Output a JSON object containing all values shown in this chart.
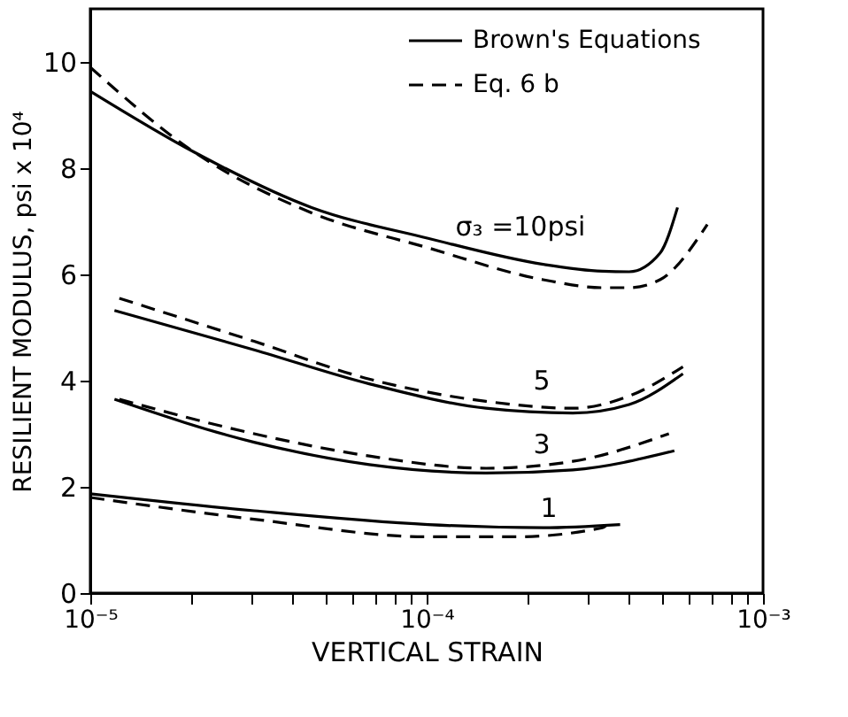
{
  "chart_data": {
    "type": "line",
    "xlabel": "VERTICAL STRAIN",
    "ylabel": "RESILIENT MODULUS, psi x 10⁴",
    "log": "x",
    "xlim": [
      1e-05,
      0.001
    ],
    "ylim": [
      0,
      11
    ],
    "xticks": [
      {
        "value": 1e-05,
        "label": "10⁻⁵"
      },
      {
        "value": 2e-05,
        "label": null
      },
      {
        "value": 3e-05,
        "label": null
      },
      {
        "value": 4e-05,
        "label": null
      },
      {
        "value": 5e-05,
        "label": null
      },
      {
        "value": 6e-05,
        "label": null
      },
      {
        "value": 7e-05,
        "label": null
      },
      {
        "value": 8e-05,
        "label": null
      },
      {
        "value": 9e-05,
        "label": null
      },
      {
        "value": 0.0001,
        "label": "10⁻⁴"
      },
      {
        "value": 0.0002,
        "label": null
      },
      {
        "value": 0.0003,
        "label": null
      },
      {
        "value": 0.0004,
        "label": null
      },
      {
        "value": 0.0005,
        "label": null
      },
      {
        "value": 0.0006,
        "label": null
      },
      {
        "value": 0.0007,
        "label": null
      },
      {
        "value": 0.0008,
        "label": null
      },
      {
        "value": 0.0009,
        "label": null
      },
      {
        "value": 0.001,
        "label": "10⁻³"
      }
    ],
    "yticks": [
      0,
      2,
      4,
      6,
      8,
      10
    ],
    "grid": false,
    "legend": "top right",
    "series": [
      {
        "name": "Brown's Equations",
        "color": "#000000",
        "line_style": "solid",
        "x": [
          1e-05,
          2.04e-05,
          4.55e-05,
          0.000101,
          0.000222,
          0.000333,
          0.0004,
          0.000494,
          0.000557
        ],
        "values": [
          9.45,
          8.3,
          7.26,
          6.68,
          6.19,
          6.06,
          6.05,
          6.4,
          7.26
        ]
      },
      {
        "name": "Eq. 6 b",
        "color": "#000000",
        "line_style": "dashed",
        "x": [
          1e-05,
          2.04e-05,
          4.55e-05,
          0.000101,
          0.000222,
          0.000333,
          0.0004,
          0.000494,
          0.000683
        ],
        "values": [
          9.9,
          8.3,
          7.16,
          6.5,
          5.9,
          5.75,
          5.75,
          5.9,
          6.94
        ]
      },
      {
        "color": "#000000",
        "line_style": "solid",
        "x": [
          1.18e-05,
          3.07e-05,
          6.75e-05,
          0.00015,
          0.000272,
          0.0004,
          0.000578
        ],
        "values": [
          5.32,
          4.58,
          3.94,
          3.48,
          3.39,
          3.55,
          4.13
        ]
      },
      {
        "color": "#000000",
        "line_style": "dashed",
        "x": [
          1.22e-05,
          3.07e-05,
          6.75e-05,
          0.00015,
          0.000272,
          0.0004,
          0.000578
        ],
        "values": [
          5.55,
          4.74,
          4.03,
          3.61,
          3.48,
          3.71,
          4.26
        ]
      },
      {
        "color": "#000000",
        "line_style": "solid",
        "x": [
          1.18e-05,
          3.07e-05,
          6.75e-05,
          0.00015,
          0.000272,
          0.000545
        ],
        "values": [
          3.65,
          2.84,
          2.42,
          2.26,
          2.32,
          2.68
        ]
      },
      {
        "color": "#000000",
        "line_style": "dashed",
        "x": [
          1.22e-05,
          3.07e-05,
          6.75e-05,
          0.00015,
          0.000272,
          0.000525
        ],
        "values": [
          3.65,
          3.0,
          2.58,
          2.35,
          2.48,
          3.0
        ]
      },
      {
        "color": "#000000",
        "line_style": "solid",
        "x": [
          1e-05,
          3.07e-05,
          0.000101,
          0.000222,
          0.000376
        ],
        "values": [
          1.87,
          1.55,
          1.29,
          1.23,
          1.29
        ]
      },
      {
        "color": "#000000",
        "line_style": "dashed",
        "x": [
          1e-05,
          3.07e-05,
          0.000101,
          0.000184,
          0.000333,
          0.00035
        ],
        "values": [
          1.8,
          1.39,
          1.06,
          1.06,
          1.23,
          1.33
        ]
      }
    ],
    "annotations": [
      "σ₃ =10psi",
      "5",
      "3",
      "1"
    ]
  }
}
